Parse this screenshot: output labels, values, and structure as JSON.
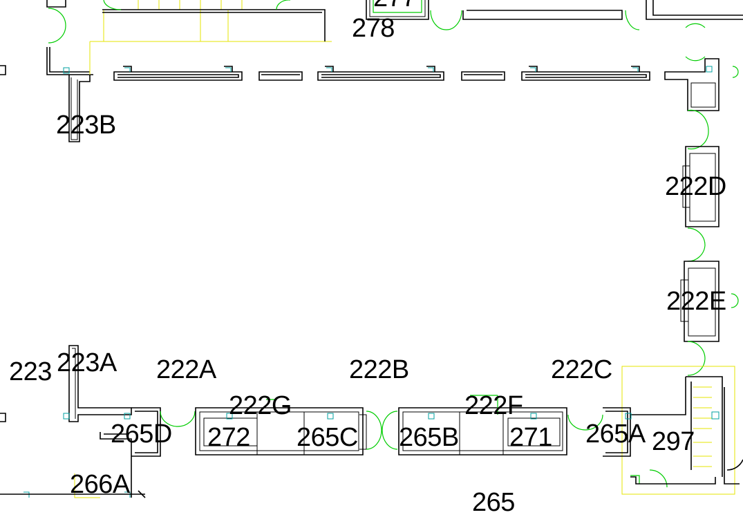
{
  "rooms": {
    "r277": "277",
    "r278": "278",
    "r223B": "223B",
    "r222D": "222D",
    "r222E": "222E",
    "r223": "223",
    "r223A": "223A",
    "r222A": "222A",
    "r222B": "222B",
    "r222C": "222C",
    "r222G": "222G",
    "r222F": "222F",
    "r272": "272",
    "r265D": "265D",
    "r265C": "265C",
    "r265B": "265B",
    "r271": "271",
    "r265A": "265A",
    "r297": "297",
    "r266A": "266A",
    "r265": "265"
  },
  "colors": {
    "walls": "#000000",
    "doors": "#00cc00",
    "columns": "#00a0a0",
    "stairs": "#e6e600"
  }
}
